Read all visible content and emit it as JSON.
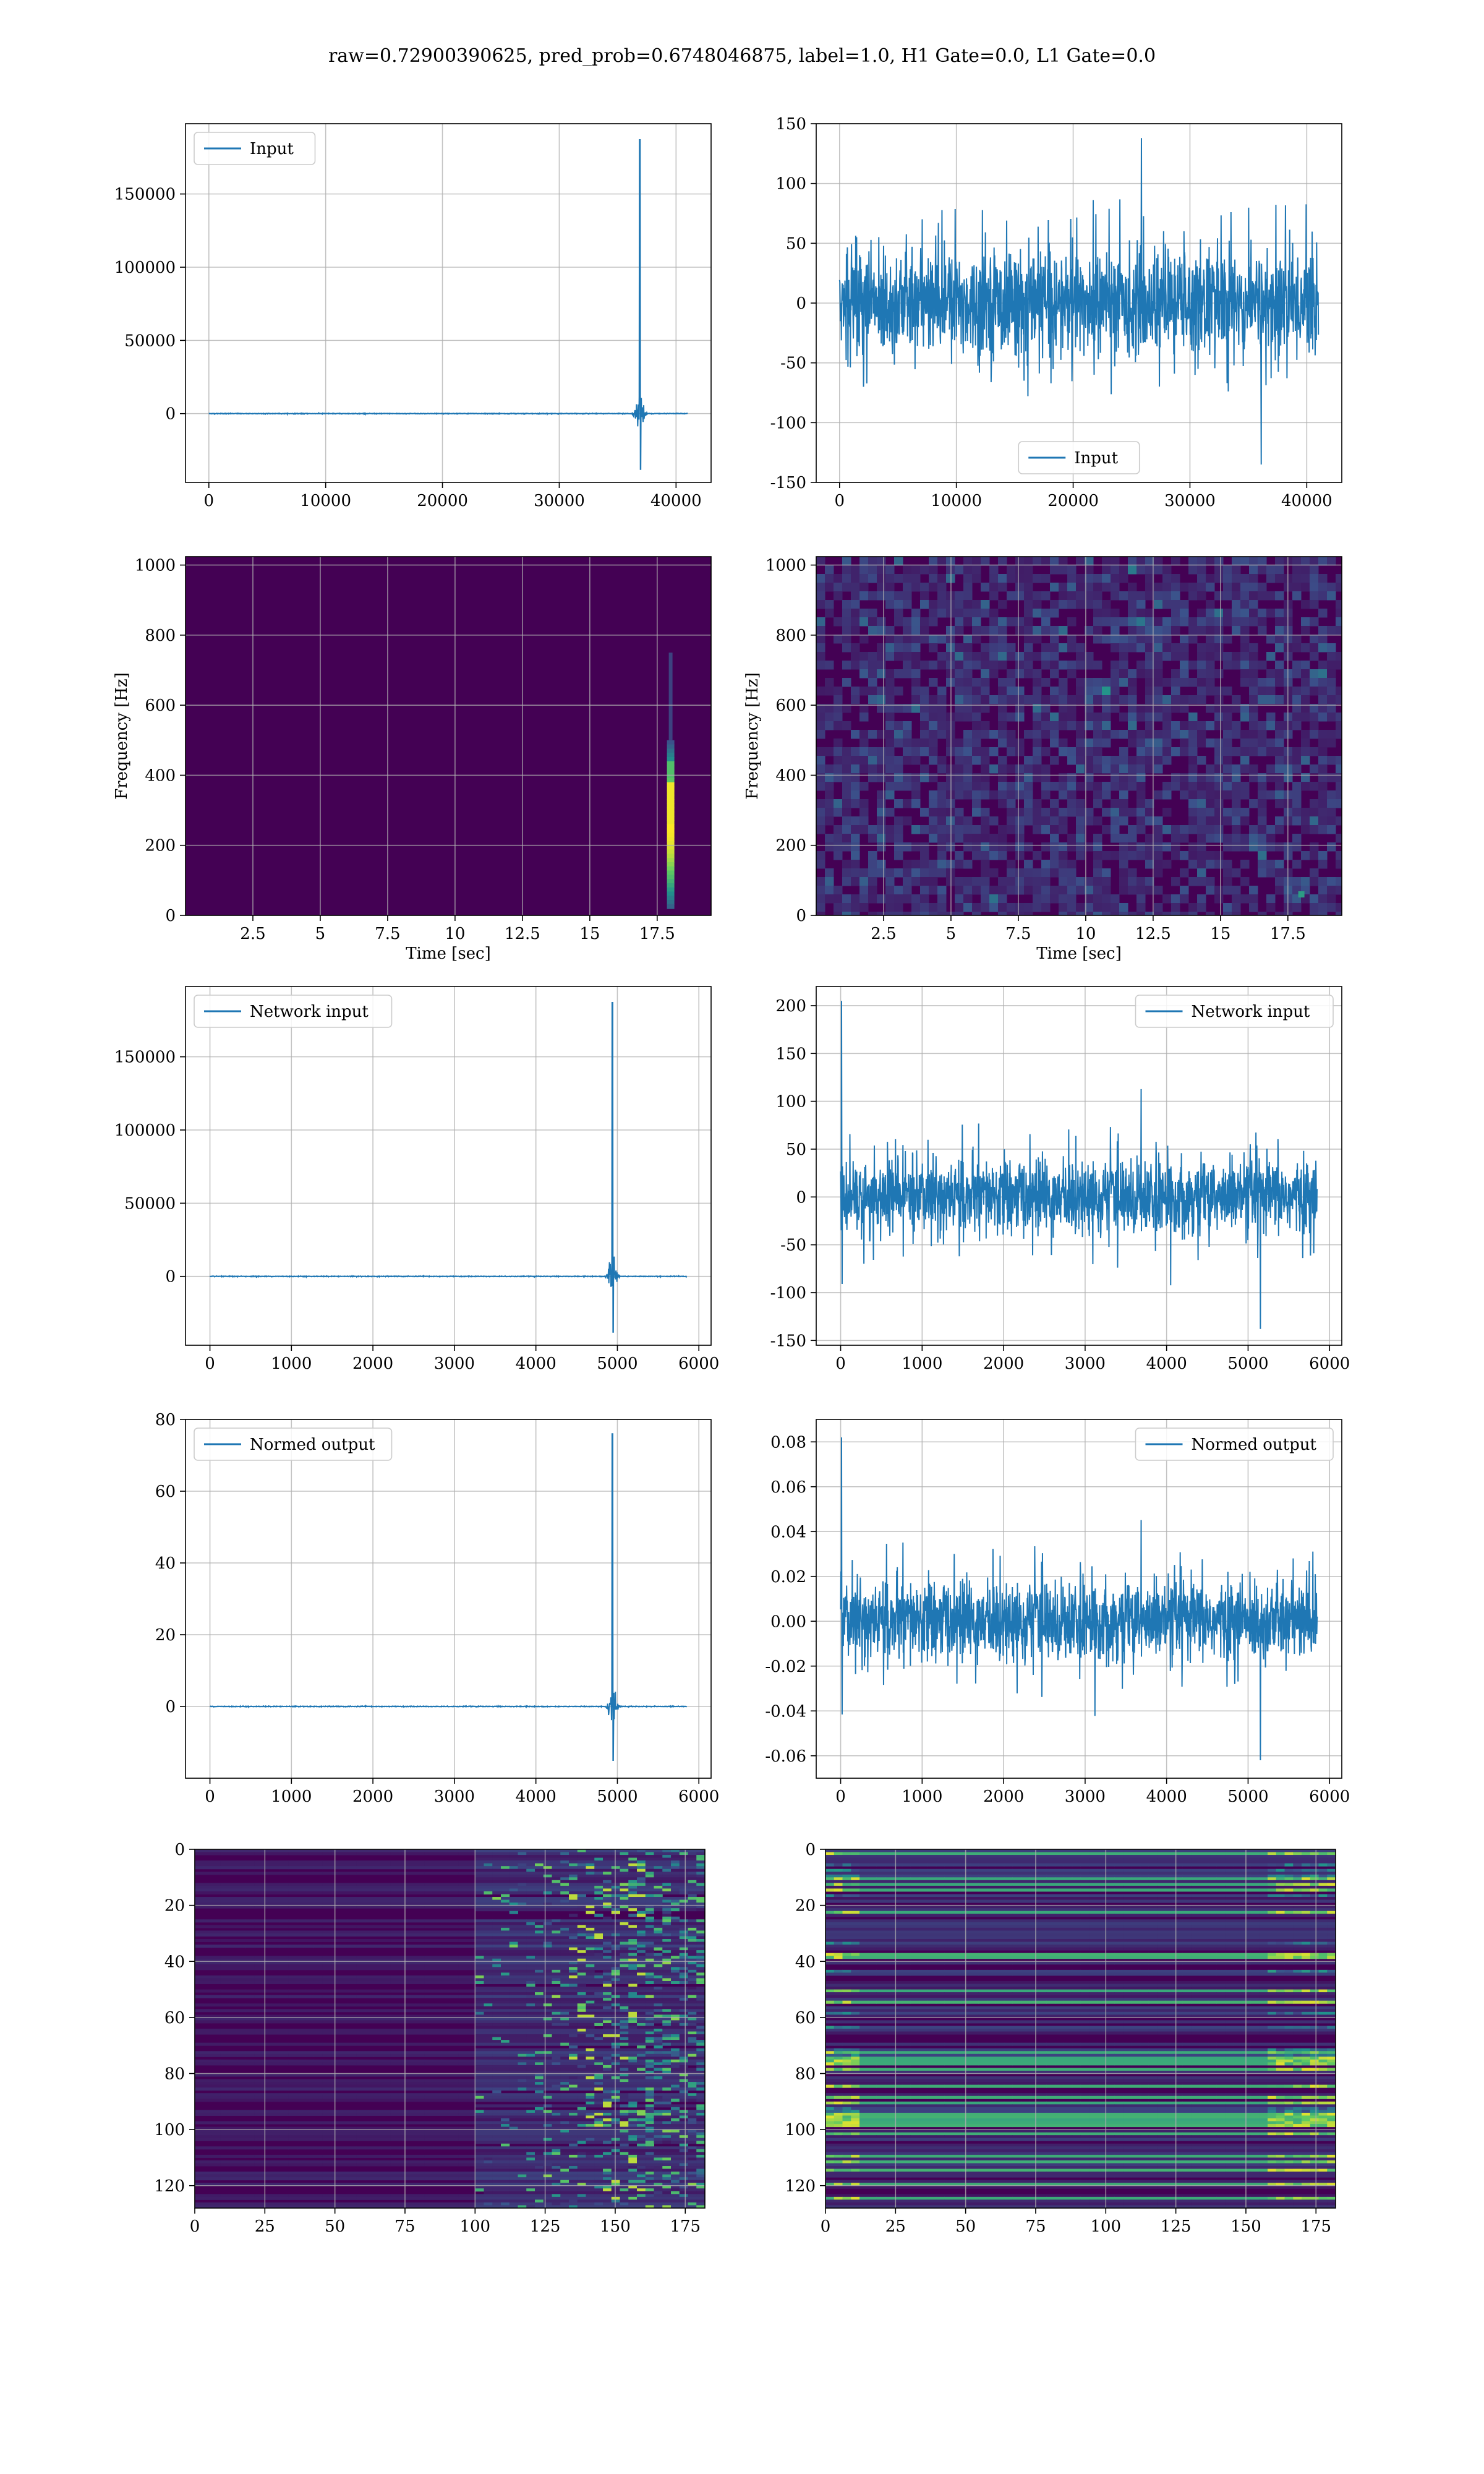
{
  "figure": {
    "suptitle": "raw=0.72900390625, pred_prob=0.6748046875, label=1.0, H1 Gate=0.0, L1 Gate=0.0"
  },
  "colors": {
    "line": "#1f77b4",
    "grid": "#b0b0b0",
    "viridis_dark": "#440154",
    "viridis_blue": "#3b528b",
    "viridis_teal": "#21918c",
    "viridis_green": "#5ec962",
    "viridis_yellow": "#fde725"
  },
  "chart_data": [
    {
      "id": "h1_input",
      "type": "line",
      "series": [
        {
          "name": "Input"
        }
      ],
      "legend": "upper left",
      "xlim": [
        -2000,
        43000
      ],
      "ylim": [
        -47000,
        198000
      ],
      "xticks": [
        0,
        10000,
        20000,
        30000,
        40000
      ],
      "yticks": [
        0,
        50000,
        100000,
        150000
      ],
      "x_max": 41000,
      "peak": {
        "x": 36900,
        "max": 187000,
        "min": -38000
      },
      "grid": true
    },
    {
      "id": "l1_input",
      "type": "line",
      "series": [
        {
          "name": "Input"
        }
      ],
      "legend": "lower center",
      "xlim": [
        -2000,
        43000
      ],
      "ylim": [
        -150,
        150
      ],
      "xticks": [
        0,
        10000,
        20000,
        30000,
        40000
      ],
      "yticks": [
        -150,
        -100,
        -50,
        0,
        50,
        100,
        150
      ],
      "x_max": 41000,
      "noise": {
        "typical": 40,
        "spike_max": 138,
        "spike_min": -135
      },
      "grid": true
    },
    {
      "id": "h1_spectrogram",
      "type": "heatmap",
      "xlabel": "Time [sec]",
      "ylabel": "Frequency [Hz]",
      "xlim": [
        0,
        19.5
      ],
      "ylim": [
        0,
        1024
      ],
      "xticks": [
        2.5,
        5.0,
        7.5,
        10.0,
        12.5,
        15.0,
        17.5
      ],
      "yticks": [
        0,
        200,
        400,
        600,
        800,
        1000
      ],
      "event": {
        "t": 18.0,
        "f_max": 500
      },
      "grid": true
    },
    {
      "id": "l1_spectrogram",
      "type": "heatmap",
      "xlabel": "Time [sec]",
      "ylabel": "Frequency [Hz]",
      "xlim": [
        0,
        19.5
      ],
      "ylim": [
        0,
        1024
      ],
      "xticks": [
        2.5,
        5.0,
        7.5,
        10.0,
        12.5,
        15.0,
        17.5
      ],
      "yticks": [
        0,
        200,
        400,
        600,
        800,
        1000
      ],
      "grid": true
    },
    {
      "id": "h1_network_input",
      "type": "line",
      "series": [
        {
          "name": "Network input"
        }
      ],
      "legend": "upper left",
      "xlim": [
        -300,
        6150
      ],
      "ylim": [
        -47000,
        198000
      ],
      "xticks": [
        0,
        1000,
        2000,
        3000,
        4000,
        5000,
        6000
      ],
      "yticks": [
        0,
        50000,
        100000,
        150000
      ],
      "x_max": 5850,
      "peak": {
        "x": 4940,
        "max": 187000,
        "min": -38000
      },
      "grid": true
    },
    {
      "id": "l1_network_input",
      "type": "line",
      "series": [
        {
          "name": "Network input"
        }
      ],
      "legend": "upper right",
      "xlim": [
        -300,
        6150
      ],
      "ylim": [
        -155,
        220
      ],
      "xticks": [
        0,
        1000,
        2000,
        3000,
        4000,
        5000,
        6000
      ],
      "yticks": [
        -150,
        -100,
        -50,
        0,
        50,
        100,
        150,
        200
      ],
      "x_max": 5850,
      "noise": {
        "typical": 35,
        "spike_max": 205,
        "spike_min": -138
      },
      "grid": true
    },
    {
      "id": "h1_normed_output",
      "type": "line",
      "series": [
        {
          "name": "Normed output"
        }
      ],
      "legend": "upper left",
      "xlim": [
        -300,
        6150
      ],
      "ylim": [
        -20,
        80
      ],
      "xticks": [
        0,
        1000,
        2000,
        3000,
        4000,
        5000,
        6000
      ],
      "yticks": [
        0,
        20,
        40,
        60,
        80
      ],
      "x_max": 5850,
      "peak": {
        "x": 4940,
        "max": 76,
        "min": -15
      },
      "grid": true
    },
    {
      "id": "l1_normed_output",
      "type": "line",
      "series": [
        {
          "name": "Normed output"
        }
      ],
      "legend": "upper right",
      "xlim": [
        -300,
        6150
      ],
      "ylim": [
        -0.07,
        0.09
      ],
      "xticks": [
        0,
        1000,
        2000,
        3000,
        4000,
        5000,
        6000
      ],
      "yticks": [
        -0.06,
        -0.04,
        -0.02,
        0.0,
        0.02,
        0.04,
        0.06,
        0.08
      ],
      "tick_decimals": 2,
      "x_max": 5850,
      "noise": {
        "typical": 0.016,
        "spike_max": 0.082,
        "spike_min": -0.062
      },
      "grid": true
    },
    {
      "id": "h1_features",
      "type": "heatmap",
      "xlim": [
        0,
        182
      ],
      "ylim": [
        128,
        0
      ],
      "xticks": [
        0,
        25,
        50,
        75,
        100,
        125,
        150,
        175
      ],
      "yticks": [
        0,
        20,
        40,
        60,
        80,
        100,
        120
      ],
      "grid": true
    },
    {
      "id": "l1_features",
      "type": "heatmap",
      "xlim": [
        0,
        182
      ],
      "ylim": [
        128,
        0
      ],
      "xticks": [
        0,
        25,
        50,
        75,
        100,
        125,
        150,
        175
      ],
      "yticks": [
        0,
        20,
        40,
        60,
        80,
        100,
        120
      ],
      "grid": true
    }
  ]
}
